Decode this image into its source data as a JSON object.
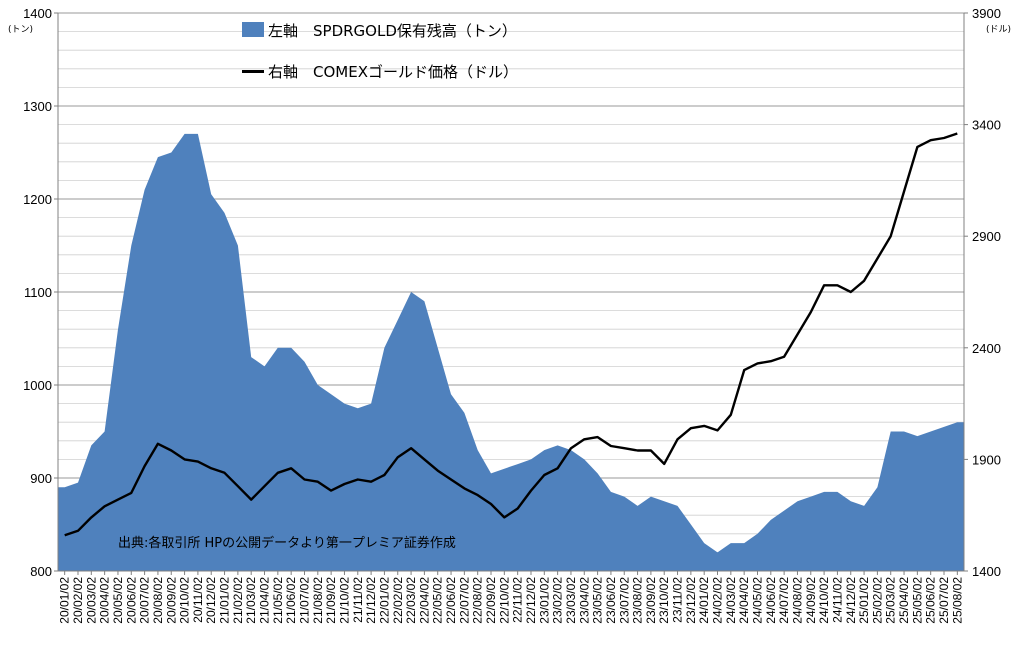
{
  "chart_data": {
    "type": "area+line",
    "legend": [
      {
        "label": "左軸　SPDRGOLD保有残高（トン）",
        "color": "#4F81BD"
      },
      {
        "label": "右軸　COMEXゴールド価格（ドル）",
        "color": "#000000"
      }
    ],
    "source": "出典:各取引所 HPの公開データより第一プレミア証券作成",
    "y_left": {
      "unit": "(トン)",
      "ylim": [
        800,
        1400
      ],
      "ticks": [
        "800",
        "900",
        "1000",
        "1100",
        "1200",
        "1300",
        "1400"
      ]
    },
    "y_right": {
      "unit": "(ドル)",
      "ylim": [
        1400,
        3900
      ],
      "ticks": [
        "1400",
        "1900",
        "2400",
        "2900",
        "3400",
        "3900"
      ]
    },
    "x_ticks": [
      "20/01/02",
      "20/02/02",
      "20/03/02",
      "20/04/02",
      "20/05/02",
      "20/06/02",
      "20/07/02",
      "20/08/02",
      "20/09/02",
      "20/10/02",
      "20/11/02",
      "20/12/02",
      "21/01/02",
      "21/02/02",
      "21/03/02",
      "21/04/02",
      "21/05/02",
      "21/06/02",
      "21/07/02",
      "21/08/02",
      "21/09/02",
      "21/10/02",
      "21/11/02",
      "21/12/02",
      "22/01/02",
      "22/02/02",
      "22/03/02",
      "22/04/02",
      "22/05/02",
      "22/06/02",
      "22/07/02",
      "22/08/02",
      "22/09/02",
      "22/10/02",
      "22/11/02",
      "22/12/02",
      "23/01/02",
      "23/02/02",
      "23/03/02",
      "23/04/02",
      "23/05/02",
      "23/06/02",
      "23/07/02",
      "23/08/02",
      "23/09/02",
      "23/10/02",
      "23/11/02",
      "23/12/02",
      "24/01/02",
      "24/02/02",
      "24/03/02",
      "24/04/02",
      "24/05/02",
      "24/06/02",
      "24/07/02",
      "24/08/02",
      "24/09/02",
      "24/10/02",
      "24/11/02",
      "24/12/02",
      "25/01/02",
      "25/02/02",
      "25/03/02",
      "25/04/02",
      "25/05/02",
      "25/06/02",
      "25/07/02",
      "25/08/02"
    ],
    "x_label_step": 1,
    "series": [
      {
        "name": "SPDRGOLD保有残高（トン）",
        "axis": "left",
        "type": "area",
        "values": [
          890,
          895,
          935,
          950,
          1060,
          1150,
          1210,
          1245,
          1250,
          1270,
          1270,
          1205,
          1185,
          1150,
          1030,
          1020,
          1040,
          1040,
          1025,
          1000,
          990,
          980,
          975,
          980,
          1040,
          1070,
          1100,
          1090,
          1040,
          990,
          970,
          930,
          905,
          910,
          915,
          920,
          930,
          935,
          930,
          920,
          905,
          885,
          880,
          870,
          880,
          875,
          870,
          850,
          830,
          820,
          830,
          830,
          840,
          855,
          865,
          875,
          880,
          885,
          885,
          875,
          870,
          890,
          950,
          950,
          945,
          950,
          955,
          960
        ]
      },
      {
        "name": "COMEXゴールド価格（ドル）",
        "axis": "right",
        "type": "line",
        "values": [
          1560,
          1580,
          1640,
          1690,
          1720,
          1750,
          1870,
          1970,
          1940,
          1900,
          1890,
          1860,
          1840,
          1780,
          1720,
          1780,
          1840,
          1860,
          1810,
          1800,
          1760,
          1790,
          1810,
          1800,
          1830,
          1910,
          1950,
          1900,
          1850,
          1810,
          1770,
          1740,
          1700,
          1640,
          1680,
          1760,
          1830,
          1860,
          1950,
          1990,
          2000,
          1960,
          1950,
          1940,
          1940,
          1880,
          1990,
          2040,
          2050,
          2030,
          2100,
          2300,
          2330,
          2340,
          2360,
          2460,
          2560,
          2680,
          2680,
          2650,
          2700,
          2800,
          2900,
          3100,
          3300,
          3330,
          3340,
          3360
        ]
      }
    ]
  }
}
